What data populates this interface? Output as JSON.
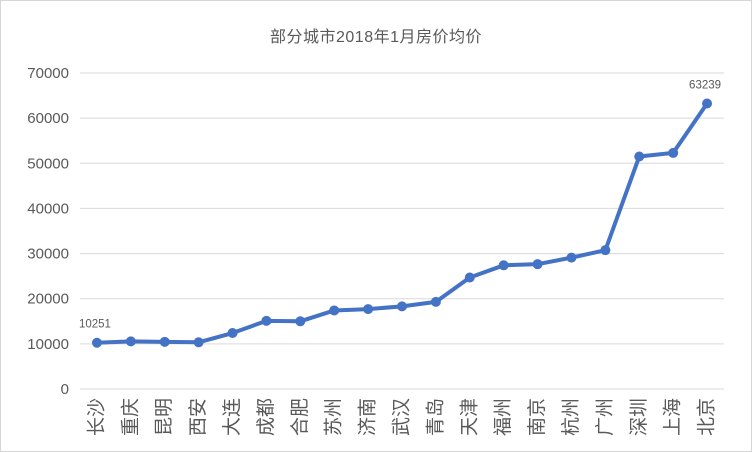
{
  "window": {
    "background_color": "#ffffff",
    "border_color": "#d6d6d6"
  },
  "chart_data": {
    "type": "line",
    "title": "部分城市2018年1月房价均价",
    "categories": [
      "长沙",
      "重庆",
      "昆明",
      "西安",
      "大连",
      "成都",
      "合肥",
      "苏州",
      "济南",
      "武汉",
      "青岛",
      "天津",
      "福州",
      "南京",
      "杭州",
      "广州",
      "深圳",
      "上海",
      "北京"
    ],
    "values": [
      10251,
      10550,
      10450,
      10350,
      12400,
      15100,
      15000,
      17400,
      17700,
      18300,
      19300,
      24700,
      27400,
      27650,
      29100,
      30750,
      51500,
      52300,
      63239
    ],
    "xlabel": "",
    "ylabel": "",
    "ylim": [
      0,
      70000
    ],
    "yticks": [
      0,
      10000,
      20000,
      30000,
      40000,
      50000,
      60000,
      70000
    ],
    "grid": true,
    "legend": "none",
    "line_color": "#4472C4",
    "marker": "circle",
    "gridline_color": "#d9d9d9",
    "text_color": "#595959",
    "data_labels": [
      {
        "index": 0,
        "text": "10251"
      },
      {
        "index": 18,
        "text": "63239"
      }
    ]
  }
}
